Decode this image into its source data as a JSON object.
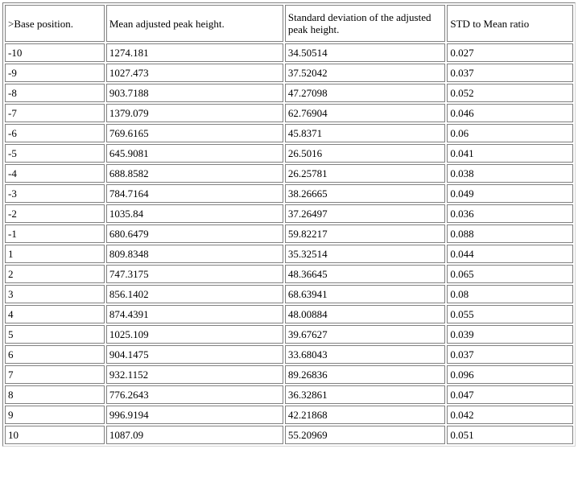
{
  "table": {
    "headers": [
      ">Base position.",
      "Mean adjusted peak height.",
      "Standard deviation of the adjusted peak height.",
      "STD to Mean ratio"
    ],
    "rows": [
      [
        "-10",
        "1274.181",
        "34.50514",
        "0.027"
      ],
      [
        "-9",
        "1027.473",
        "37.52042",
        "0.037"
      ],
      [
        "-8",
        "903.7188",
        "47.27098",
        "0.052"
      ],
      [
        "-7",
        "1379.079",
        "62.76904",
        "0.046"
      ],
      [
        "-6",
        "769.6165",
        "45.8371",
        "0.06"
      ],
      [
        "-5",
        "645.9081",
        "26.5016",
        "0.041"
      ],
      [
        "-4",
        "688.8582",
        "26.25781",
        "0.038"
      ],
      [
        "-3",
        "784.7164",
        "38.26665",
        "0.049"
      ],
      [
        "-2",
        "1035.84",
        "37.26497",
        "0.036"
      ],
      [
        "-1",
        "680.6479",
        "59.82217",
        "0.088"
      ],
      [
        "1",
        "809.8348",
        "35.32514",
        "0.044"
      ],
      [
        "2",
        "747.3175",
        "48.36645",
        "0.065"
      ],
      [
        "3",
        "856.1402",
        "68.63941",
        "0.08"
      ],
      [
        "4",
        "874.4391",
        "48.00884",
        "0.055"
      ],
      [
        "5",
        "1025.109",
        "39.67627",
        "0.039"
      ],
      [
        "6",
        "904.1475",
        "33.68043",
        "0.037"
      ],
      [
        "7",
        "932.1152",
        "89.26836",
        "0.096"
      ],
      [
        "8",
        "776.2643",
        "36.32861",
        "0.047"
      ],
      [
        "9",
        "996.9194",
        "42.21868",
        "0.042"
      ],
      [
        "10",
        "1087.09",
        "55.20969",
        "0.051"
      ]
    ]
  }
}
